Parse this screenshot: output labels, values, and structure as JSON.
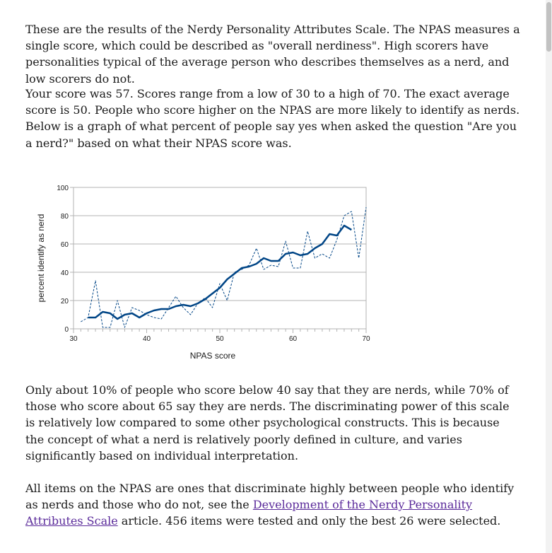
{
  "text": {
    "p1": "These are the results of the Nerdy Personality Attributes Scale. The NPAS measures a single score, which could be described as \"overall nerdiness\". High scorers have personalities typical of the average person who describes themselves as a nerd, and low scorers do not.",
    "p2": "Your score was 57. Scores range from a low of 30 to a high of 70. The exact average score is 50. People who score higher on the NPAS are more likely to identify as nerds. Below is a graph of what percent of people say yes when asked the question \"Are you a nerd?\" based on what their NPAS score was.",
    "p3": "Only about 10% of people who score below 40 say that they are nerds, while 70% of those who score about 65 say they are nerds. The discriminating power of this scale is relatively low compared to some other psychological constructs. This is because the concept of what a nerd is relatively poorly defined in culture, and varies significantly based on individual interpretation.",
    "p4_before": "All items on the NPAS are ones that discriminate highly between people who identify as nerds and those who do not, see the ",
    "p4_link": "Development of the Nerdy Personality Attributes Scale",
    "p4_after": " article. 456 items were tested and only the best 26 were selected."
  },
  "colors": {
    "series": "#004586",
    "link": "#5a2a9a",
    "grid": "#b3b3b3"
  },
  "chart_data": {
    "type": "line",
    "xlabel": "NPAS score",
    "ylabel": "percent identify as nerd",
    "xlim": [
      30,
      70
    ],
    "ylim": [
      0,
      100
    ],
    "xticks": [
      30,
      40,
      50,
      60,
      70
    ],
    "yticks": [
      0,
      20,
      40,
      60,
      80,
      100
    ],
    "grid": true,
    "series": [
      {
        "style": "dashed-thin",
        "x": [
          31,
          32,
          33,
          34,
          35,
          36,
          37,
          38,
          39,
          40,
          41,
          42,
          43,
          44,
          45,
          46,
          47,
          48,
          49,
          50,
          51,
          52,
          53,
          54,
          55,
          56,
          57,
          58,
          59,
          60,
          61,
          62,
          63,
          64,
          65,
          66,
          67,
          68,
          69,
          70
        ],
        "y": [
          5,
          8,
          34,
          1,
          1,
          20,
          1,
          15,
          13,
          10,
          8,
          7,
          15,
          23,
          15,
          10,
          18,
          22,
          15,
          32,
          20,
          40,
          42,
          45,
          57,
          42,
          45,
          44,
          62,
          43,
          43,
          69,
          50,
          53,
          50,
          63,
          80,
          83,
          50,
          86
        ]
      },
      {
        "style": "solid-thick",
        "x": [
          32,
          33,
          34,
          35,
          36,
          37,
          38,
          39,
          40,
          41,
          42,
          43,
          44,
          45,
          46,
          47,
          48,
          49,
          50,
          51,
          52,
          53,
          54,
          55,
          56,
          57,
          58,
          59,
          60,
          61,
          62,
          63,
          64,
          65,
          66,
          67,
          68
        ],
        "y": [
          8,
          8,
          12,
          11,
          7,
          10,
          11,
          8,
          11,
          13,
          14,
          14,
          16,
          17,
          16,
          18,
          21,
          25,
          29,
          35,
          39,
          43,
          44,
          46,
          50,
          48,
          48,
          53,
          54,
          52,
          53,
          57,
          60,
          67,
          66,
          73,
          70
        ]
      }
    ]
  }
}
